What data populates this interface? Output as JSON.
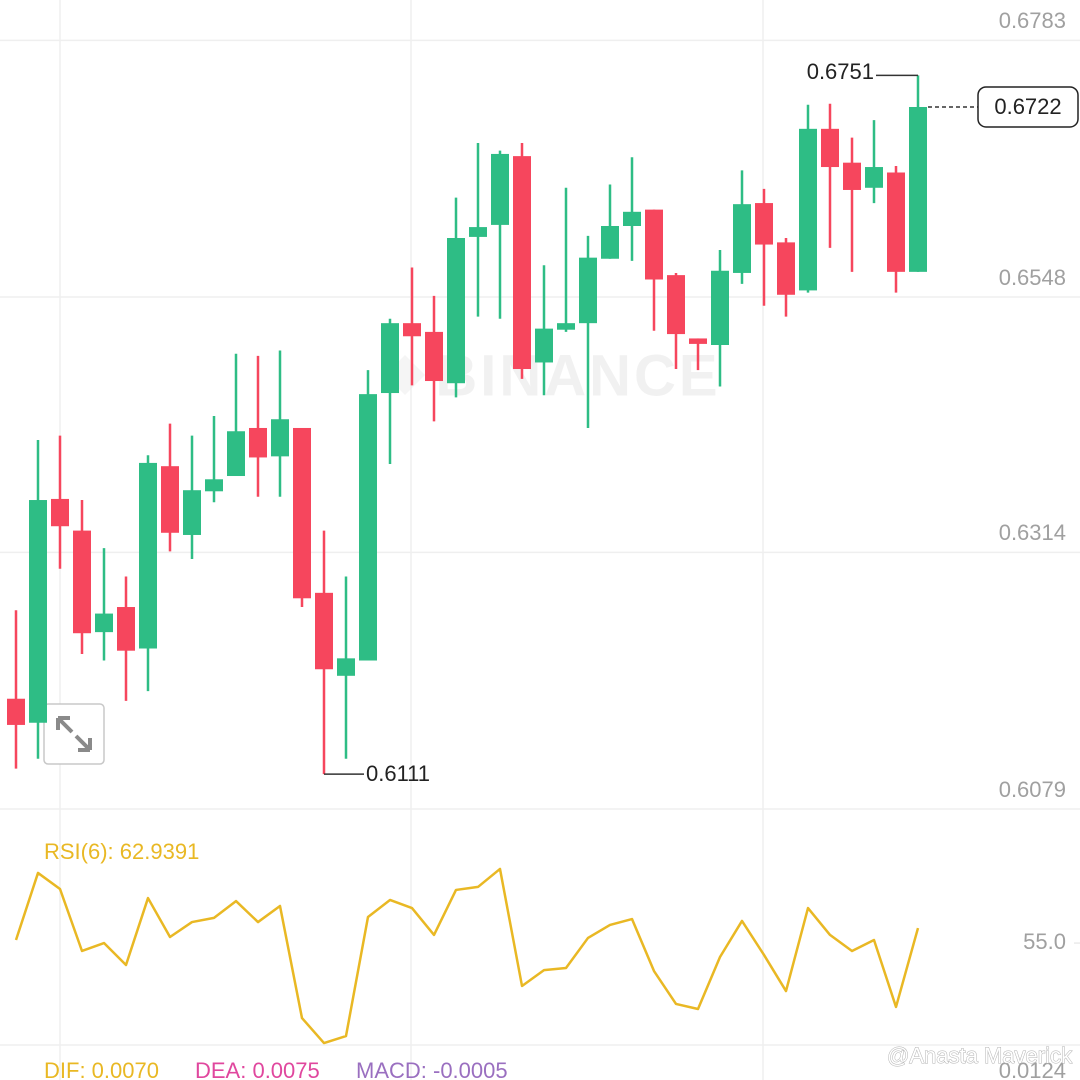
{
  "watermark": "BINANCE",
  "credit": "@Anasta Maverick",
  "chart_data": [
    {
      "type": "candlestick",
      "up_color": "#2ebd85",
      "down_color": "#f6465d",
      "open": [
        0.618,
        0.6158,
        0.6363,
        0.6334,
        0.6241,
        0.6264,
        0.6226,
        0.6393,
        0.633,
        0.637,
        0.6384,
        0.6428,
        0.6402,
        0.6428,
        0.6277,
        0.6201,
        0.6215,
        0.646,
        0.6524,
        0.6516,
        0.6469,
        0.6603,
        0.6614,
        0.6677,
        0.6488,
        0.6518,
        0.6524,
        0.6583,
        0.6613,
        0.6628,
        0.6568,
        0.651,
        0.6504,
        0.657,
        0.6634,
        0.6598,
        0.6554,
        0.6702,
        0.6671,
        0.6648,
        0.6662,
        0.6571
      ],
      "high": [
        0.6261,
        0.6417,
        0.6421,
        0.6362,
        0.6318,
        0.6292,
        0.6403,
        0.6432,
        0.6421,
        0.6439,
        0.6496,
        0.6494,
        0.6499,
        0.6428,
        0.6334,
        0.6292,
        0.6481,
        0.6528,
        0.6575,
        0.6549,
        0.6639,
        0.6689,
        0.6682,
        0.6689,
        0.6577,
        0.6648,
        0.6604,
        0.6651,
        0.6676,
        0.6628,
        0.657,
        0.651,
        0.6591,
        0.6664,
        0.6647,
        0.6602,
        0.6724,
        0.6725,
        0.6694,
        0.671,
        0.6668,
        0.6751
      ],
      "low": [
        0.6116,
        0.6125,
        0.6299,
        0.6221,
        0.6215,
        0.6178,
        0.6187,
        0.6315,
        0.6308,
        0.636,
        0.6384,
        0.6365,
        0.6365,
        0.6264,
        0.6111,
        0.6125,
        0.6215,
        0.6395,
        0.6467,
        0.6434,
        0.6456,
        0.653,
        0.6528,
        0.6473,
        0.6458,
        0.6516,
        0.6428,
        0.6583,
        0.6581,
        0.6517,
        0.6482,
        0.6481,
        0.6466,
        0.656,
        0.654,
        0.653,
        0.6552,
        0.6593,
        0.6571,
        0.6634,
        0.6552,
        0.6571
      ],
      "close": [
        0.6156,
        0.6362,
        0.6338,
        0.624,
        0.6258,
        0.6224,
        0.6396,
        0.6332,
        0.6371,
        0.6381,
        0.6425,
        0.6401,
        0.6436,
        0.6272,
        0.6207,
        0.6217,
        0.6459,
        0.6524,
        0.6512,
        0.6471,
        0.6602,
        0.6612,
        0.6679,
        0.6482,
        0.6519,
        0.6524,
        0.6584,
        0.6613,
        0.6626,
        0.6564,
        0.6514,
        0.6505,
        0.6572,
        0.6633,
        0.6596,
        0.655,
        0.6702,
        0.6667,
        0.6646,
        0.6667,
        0.6571,
        0.6722
      ],
      "ylim": [
        0.6079,
        0.682
      ],
      "yticks": [
        0.6783,
        0.6548,
        0.6314,
        0.6079
      ],
      "grid": true
    },
    {
      "type": "line",
      "series": [
        {
          "name": "RSI(6): 62.9391",
          "color": "#e9b824",
          "values": [
            56.6,
            92.1,
            83.6,
            50.8,
            55.0,
            43.4,
            78.8,
            58.2,
            66.1,
            68.3,
            77.2,
            66.1,
            74.6,
            15.3,
            2.1,
            5.8,
            68.8,
            77.8,
            73.5,
            59.3,
            83.1,
            84.7,
            94.2,
            32.3,
            40.7,
            41.8,
            57.7,
            64.6,
            67.7,
            40.2,
            22.8,
            20.1,
            47.6,
            66.7,
            48.7,
            29.6,
            73.5,
            59.3,
            50.8,
            56.6,
            21.2,
            62.9391
          ]
        }
      ],
      "ylim": [
        0,
        100
      ],
      "yticks": [
        {
          "value": 55,
          "label": "55.0"
        }
      ]
    },
    {
      "type": "macd",
      "series": [
        {
          "name": "DIF: 0.0070",
          "color": "#e9b824"
        },
        {
          "name": "DEA: 0.0075",
          "color": "#e0479e"
        },
        {
          "name": "MACD: -0.0005",
          "color": "#9a6fc0"
        }
      ],
      "yticks": [
        0.0124
      ]
    }
  ]
}
